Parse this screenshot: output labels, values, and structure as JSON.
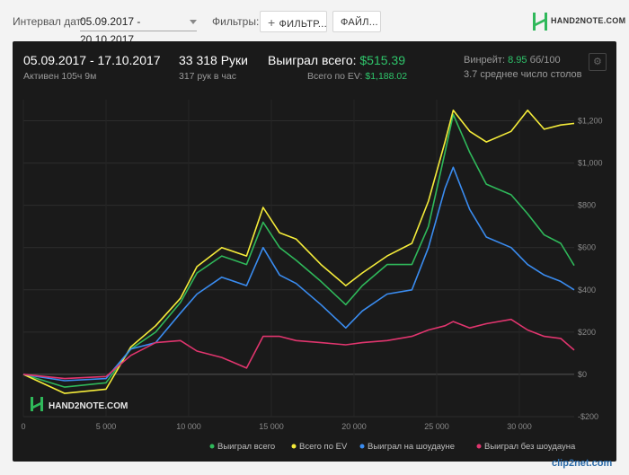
{
  "toolbar": {
    "date_label": "Интервал дат:",
    "date_value": "05.09.2017 - 20.10.2017",
    "filters_label": "Фильтры:",
    "filter_button": "ФИЛЬТР...",
    "file_button": "ФАЙЛ..."
  },
  "brand": {
    "logo_text": "HAND2NOTE.COM",
    "watermark_text": "HAND2NOTE.COM",
    "footer_text": "clip2net.com"
  },
  "stats": {
    "period": "05.09.2017 - 17.10.2017",
    "active": "Активен 105ч 9м",
    "hands": "33 318 Руки",
    "hands_per_hour": "317 рук в час",
    "won_label": "Выиграл всего:",
    "won_value": "$515.39",
    "ev_label": "Всего по EV:",
    "ev_value": "$1,188.02",
    "winrate_label": "Винрейт:",
    "winrate_value": "8.95",
    "winrate_unit": "бб/100",
    "tables": "3.7 среднее число столов"
  },
  "colors": {
    "won": "#2fb85a",
    "ev": "#f5ec3a",
    "showdown": "#3a8cf0",
    "non_showdown": "#e0356e"
  },
  "chart_data": {
    "type": "line",
    "xlim": [
      0,
      33318
    ],
    "ylim": [
      -200,
      1300
    ],
    "x_ticks": [
      0,
      5000,
      10000,
      15000,
      20000,
      25000,
      30000
    ],
    "x_tick_labels": [
      "0",
      "5 000",
      "10 000",
      "15 000",
      "20 000",
      "25 000",
      "30 000"
    ],
    "y_ticks": [
      -200,
      0,
      200,
      400,
      600,
      800,
      1000,
      1200
    ],
    "y_tick_labels": [
      "-$200",
      "$0",
      "$200",
      "$400",
      "$600",
      "$800",
      "$1,000",
      "$1,200"
    ],
    "grid": true,
    "legend_position": "bottom-right",
    "x": [
      0,
      2500,
      5000,
      6500,
      8000,
      9500,
      10500,
      12000,
      13500,
      14500,
      15500,
      16500,
      18000,
      19500,
      20500,
      22000,
      23500,
      24500,
      25500,
      26000,
      27000,
      28000,
      29500,
      30500,
      31500,
      32500,
      33318
    ],
    "series": [
      {
        "name": "Выиграл всего",
        "color_key": "won",
        "values": [
          0,
          -60,
          -40,
          120,
          200,
          340,
          480,
          560,
          520,
          720,
          600,
          540,
          440,
          330,
          420,
          520,
          520,
          700,
          1050,
          1230,
          1050,
          900,
          850,
          760,
          660,
          620,
          515
        ]
      },
      {
        "name": "Всего по EV",
        "color_key": "ev",
        "values": [
          0,
          -90,
          -70,
          130,
          230,
          360,
          510,
          600,
          560,
          790,
          670,
          640,
          520,
          420,
          480,
          560,
          620,
          820,
          1100,
          1250,
          1150,
          1100,
          1150,
          1250,
          1160,
          1180,
          1188
        ]
      },
      {
        "name": "Выиграл на шоудауне",
        "color_key": "showdown",
        "values": [
          0,
          -30,
          -20,
          120,
          150,
          290,
          380,
          460,
          420,
          600,
          470,
          430,
          330,
          220,
          300,
          380,
          400,
          600,
          880,
          980,
          780,
          650,
          600,
          520,
          470,
          440,
          400
        ]
      },
      {
        "name": "Выиграл без шоудауна",
        "color_key": "non_showdown",
        "values": [
          0,
          -20,
          -10,
          90,
          150,
          160,
          110,
          80,
          30,
          180,
          180,
          160,
          150,
          140,
          150,
          160,
          180,
          210,
          230,
          250,
          220,
          240,
          260,
          210,
          180,
          170,
          115
        ]
      }
    ]
  }
}
